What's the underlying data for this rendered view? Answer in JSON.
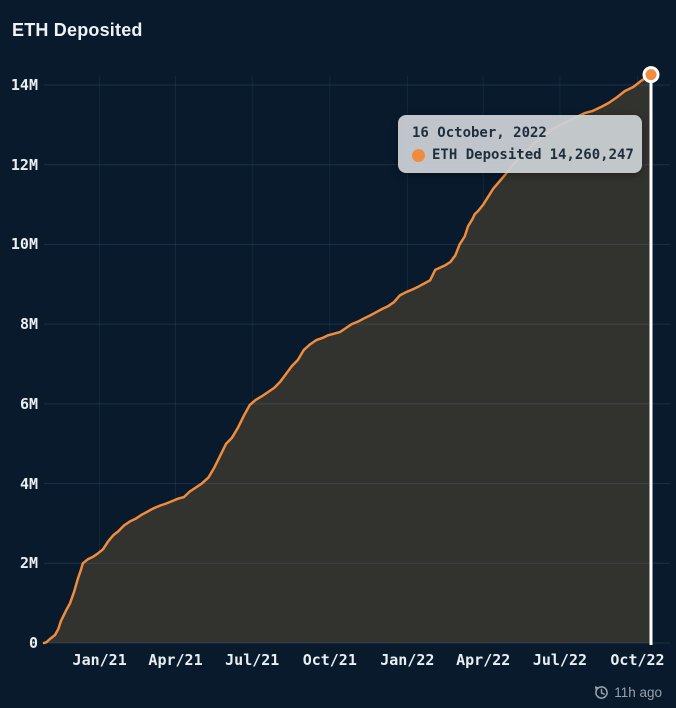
{
  "header": {
    "title": "ETH Deposited"
  },
  "tooltip": {
    "date": "16 October, 2022",
    "series_label": "ETH Deposited",
    "value": "14,260,247",
    "marker_color": "#f08c3e"
  },
  "footer": {
    "updated": "11h ago",
    "clock_icon": "history-clock-icon"
  },
  "colors": {
    "background": "#081a2c",
    "line": "#f08c3e",
    "area_fill": "#32322f",
    "grid": "#7da5c8",
    "crosshair": "#ffffff",
    "marker_ring": "#ffffff",
    "axis_label": "#e9eef3",
    "tooltip_bg": "#cbd0d5",
    "tooltip_text": "#1f2e3d",
    "footer_text": "#97a1ac"
  },
  "chart_data": {
    "type": "area",
    "title": "ETH Deposited",
    "grid": true,
    "legend": "none",
    "x_axis": {
      "tick_labels": [
        "Jan/21",
        "Apr/21",
        "Jul/21",
        "Oct/21",
        "Jan/22",
        "Apr/22",
        "Jul/22",
        "Oct/22"
      ],
      "tick_days": [
        66,
        156,
        247,
        339,
        431,
        521,
        612,
        704
      ],
      "domain_days": [
        0,
        720
      ],
      "start_date": "2020-10-26",
      "end_date": "2022-10-16"
    },
    "y_axis": {
      "tick_labels": [
        "0",
        "2M",
        "4M",
        "6M",
        "8M",
        "10M",
        "12M",
        "14M"
      ],
      "tick_values_millions": [
        0,
        2,
        4,
        6,
        8,
        10,
        12,
        14
      ],
      "range_millions": [
        0,
        14.6
      ],
      "unit": "ETH"
    },
    "series": [
      {
        "name": "ETH Deposited",
        "color": "#f08c3e",
        "points_day_millions": [
          [
            0,
            0
          ],
          [
            3,
            0.02
          ],
          [
            7,
            0.1
          ],
          [
            13,
            0.2
          ],
          [
            17,
            0.35
          ],
          [
            20,
            0.55
          ],
          [
            24,
            0.72
          ],
          [
            27,
            0.85
          ],
          [
            31,
            1.0
          ],
          [
            36,
            1.3
          ],
          [
            40,
            1.6
          ],
          [
            44,
            1.85
          ],
          [
            46,
            2.0
          ],
          [
            52,
            2.1
          ],
          [
            58,
            2.16
          ],
          [
            64,
            2.25
          ],
          [
            70,
            2.35
          ],
          [
            76,
            2.55
          ],
          [
            82,
            2.7
          ],
          [
            88,
            2.8
          ],
          [
            95,
            2.95
          ],
          [
            102,
            3.05
          ],
          [
            109,
            3.12
          ],
          [
            116,
            3.22
          ],
          [
            123,
            3.3
          ],
          [
            130,
            3.38
          ],
          [
            138,
            3.45
          ],
          [
            145,
            3.5
          ],
          [
            152,
            3.56
          ],
          [
            159,
            3.62
          ],
          [
            166,
            3.66
          ],
          [
            173,
            3.8
          ],
          [
            180,
            3.9
          ],
          [
            187,
            4.0
          ],
          [
            195,
            4.15
          ],
          [
            202,
            4.4
          ],
          [
            209,
            4.7
          ],
          [
            216,
            5.0
          ],
          [
            223,
            5.15
          ],
          [
            230,
            5.4
          ],
          [
            237,
            5.7
          ],
          [
            244,
            5.97
          ],
          [
            251,
            6.1
          ],
          [
            259,
            6.2
          ],
          [
            266,
            6.3
          ],
          [
            273,
            6.4
          ],
          [
            280,
            6.55
          ],
          [
            287,
            6.75
          ],
          [
            294,
            6.95
          ],
          [
            301,
            7.1
          ],
          [
            308,
            7.35
          ],
          [
            316,
            7.5
          ],
          [
            323,
            7.6
          ],
          [
            330,
            7.65
          ],
          [
            337,
            7.72
          ],
          [
            344,
            7.76
          ],
          [
            351,
            7.8
          ],
          [
            358,
            7.9
          ],
          [
            365,
            8.0
          ],
          [
            373,
            8.07
          ],
          [
            380,
            8.15
          ],
          [
            387,
            8.22
          ],
          [
            394,
            8.3
          ],
          [
            401,
            8.38
          ],
          [
            408,
            8.45
          ],
          [
            415,
            8.55
          ],
          [
            422,
            8.72
          ],
          [
            429,
            8.8
          ],
          [
            437,
            8.87
          ],
          [
            444,
            8.94
          ],
          [
            451,
            9.02
          ],
          [
            458,
            9.1
          ],
          [
            464,
            9.36
          ],
          [
            476,
            9.48
          ],
          [
            482,
            9.56
          ],
          [
            488,
            9.73
          ],
          [
            493,
            10.0
          ],
          [
            499,
            10.2
          ],
          [
            503,
            10.46
          ],
          [
            508,
            10.63
          ],
          [
            511,
            10.76
          ],
          [
            515,
            10.84
          ],
          [
            521,
            11.0
          ],
          [
            527,
            11.2
          ],
          [
            533,
            11.4
          ],
          [
            539,
            11.55
          ],
          [
            547,
            11.75
          ],
          [
            556,
            12.0
          ],
          [
            566,
            12.2
          ],
          [
            575,
            12.4
          ],
          [
            585,
            12.6
          ],
          [
            594,
            12.75
          ],
          [
            604,
            12.9
          ],
          [
            613,
            13.0
          ],
          [
            623,
            13.1
          ],
          [
            632,
            13.2
          ],
          [
            642,
            13.3
          ],
          [
            651,
            13.35
          ],
          [
            661,
            13.45
          ],
          [
            670,
            13.55
          ],
          [
            680,
            13.7
          ],
          [
            689,
            13.85
          ],
          [
            699,
            13.95
          ],
          [
            708,
            14.1
          ],
          [
            715,
            14.2
          ],
          [
            720,
            14.26
          ]
        ]
      }
    ],
    "highlight_point": {
      "date": "16 October, 2022",
      "day": 720,
      "value": 14260247,
      "value_millions": 14.26
    }
  }
}
